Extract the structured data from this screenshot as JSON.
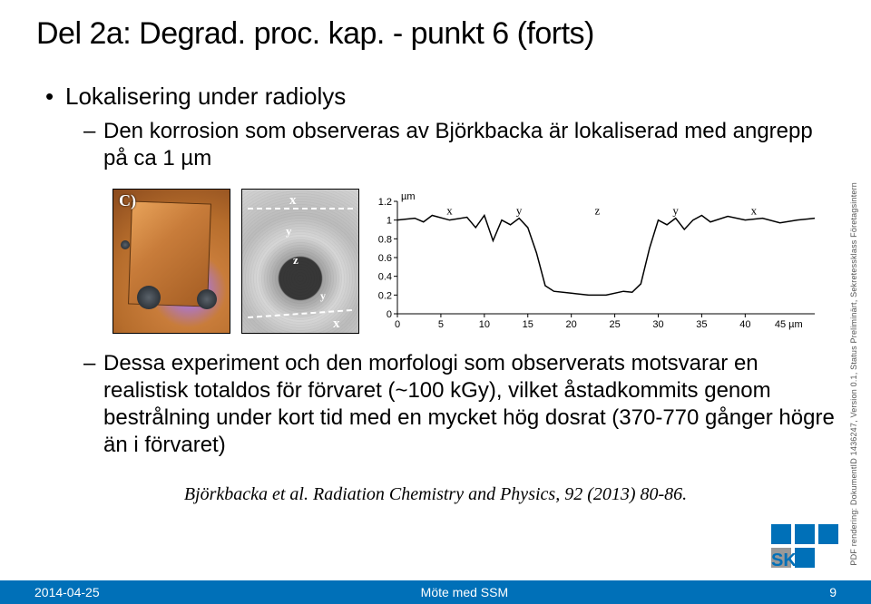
{
  "title": "Del 2a: Degrad. proc. kap. - punkt 6 (forts)",
  "bullet1": "Lokalisering under radiolys",
  "sub1": "Den korrosion som observeras av Björkbacka är lokaliserad med angrepp på ca 1 µm",
  "sub2": "Dessa experiment och den morfologi som observerats motsvarar en realistisk totaldos för förvaret (~100 kGy), vilket åstadkommits genom bestrålning under kort tid med en mycket hög dosrat (370-770 gånger högre än i förvaret)",
  "citation": "Björkbacka et al. Radiation Chemistry and Physics, 92 (2013) 80-86.",
  "side_text": "PDF rendering: DokumentID 1436247, Version 0.1, Status Preliminärt, Sekretessklass Företagsintern",
  "footer": {
    "date": "2014-04-25",
    "center": "Möte med SSM",
    "page": "9"
  },
  "logo_text": "SKB",
  "copper_label": "C)",
  "sem_letters": [
    "x",
    "y",
    "z",
    "y",
    "x"
  ],
  "profile_chart": {
    "type": "line",
    "xlim": [
      0,
      48
    ],
    "ylim": [
      0,
      1.2
    ],
    "ytick_step": 0.2,
    "xticks": [
      0,
      5,
      10,
      15,
      20,
      25,
      30,
      35,
      40
    ],
    "x_extra_label": "45 µm",
    "ylabel_top": "µm",
    "trace_color": "#000000",
    "background_color": "#ffffff",
    "axis_color": "#000000",
    "region_labels": [
      "x",
      "y",
      "z",
      "y",
      "x"
    ],
    "region_x": [
      6,
      14,
      23,
      32,
      41
    ],
    "points": [
      [
        0,
        1.0
      ],
      [
        2,
        1.02
      ],
      [
        3,
        0.98
      ],
      [
        4,
        1.05
      ],
      [
        6,
        1.0
      ],
      [
        8,
        1.03
      ],
      [
        9,
        0.92
      ],
      [
        10,
        1.05
      ],
      [
        11,
        0.78
      ],
      [
        12,
        1.0
      ],
      [
        13,
        0.95
      ],
      [
        14,
        1.02
      ],
      [
        15,
        0.92
      ],
      [
        16,
        0.65
      ],
      [
        17,
        0.3
      ],
      [
        18,
        0.24
      ],
      [
        20,
        0.22
      ],
      [
        22,
        0.2
      ],
      [
        24,
        0.2
      ],
      [
        26,
        0.24
      ],
      [
        27,
        0.23
      ],
      [
        28,
        0.32
      ],
      [
        29,
        0.7
      ],
      [
        30,
        1.0
      ],
      [
        31,
        0.95
      ],
      [
        32,
        1.02
      ],
      [
        33,
        0.9
      ],
      [
        34,
        1.0
      ],
      [
        35,
        1.05
      ],
      [
        36,
        0.98
      ],
      [
        38,
        1.04
      ],
      [
        40,
        1.0
      ],
      [
        42,
        1.02
      ],
      [
        44,
        0.97
      ],
      [
        46,
        1.0
      ],
      [
        48,
        1.02
      ]
    ]
  }
}
